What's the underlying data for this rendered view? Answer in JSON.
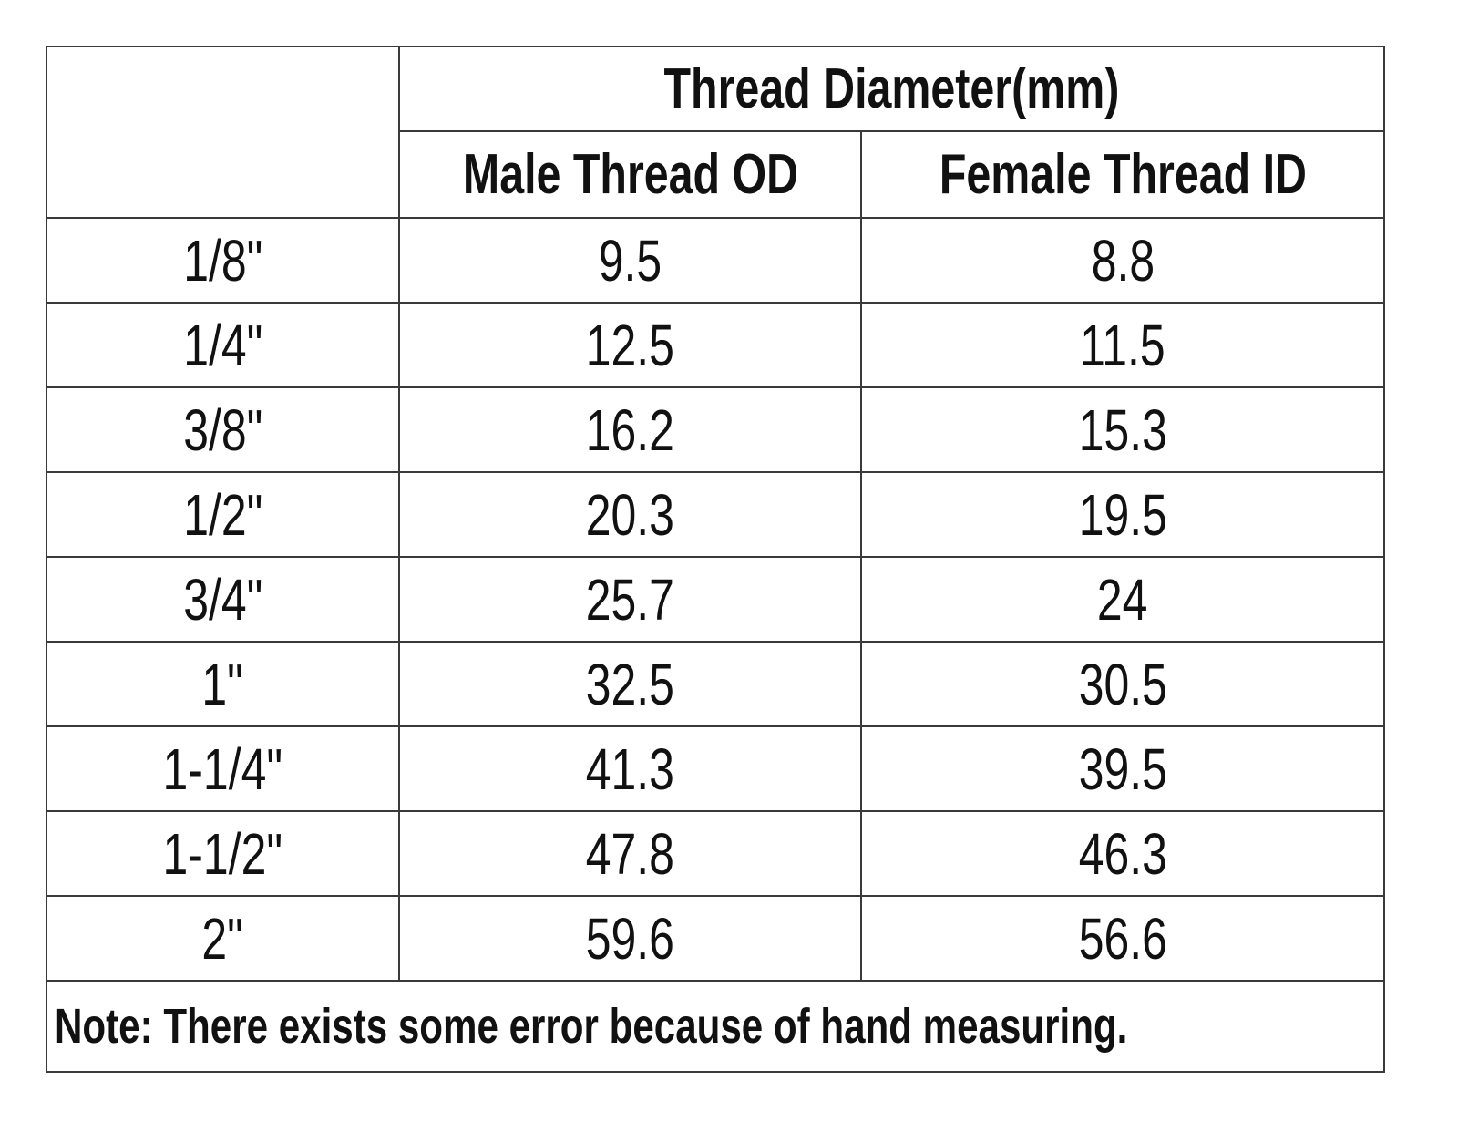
{
  "table": {
    "header": {
      "group": "Thread Diameter(mm)",
      "columns": [
        "Male Thread OD",
        "Female Thread ID"
      ]
    },
    "rows": [
      [
        "1/8\"",
        "9.5",
        "8.8"
      ],
      [
        "1/4\"",
        "12.5",
        "11.5"
      ],
      [
        "3/8\"",
        "16.2",
        "15.3"
      ],
      [
        "1/2\"",
        "20.3",
        "19.5"
      ],
      [
        "3/4\"",
        "25.7",
        "24"
      ],
      [
        "1\"",
        "32.5",
        "30.5"
      ],
      [
        "1-1/4\"",
        "41.3",
        "39.5"
      ],
      [
        "1-1/2\"",
        "47.8",
        "46.3"
      ],
      [
        "2\"",
        "59.6",
        "56.6"
      ]
    ],
    "note": "Note: There exists some error because of hand measuring."
  }
}
